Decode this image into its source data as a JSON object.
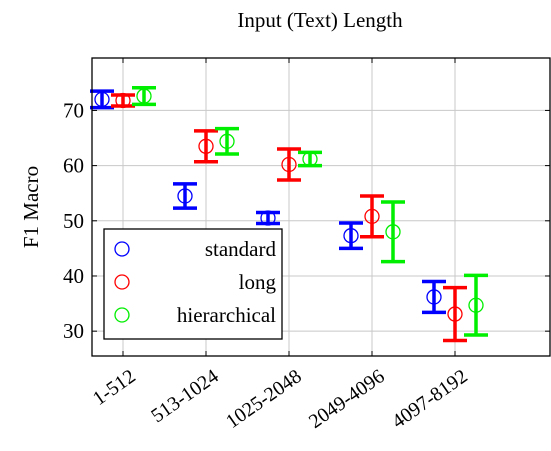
{
  "chart_data": {
    "type": "scatter",
    "title": "Input (Text) Length",
    "xlabel": "",
    "ylabel": "F1 Macro",
    "categories": [
      "1-512",
      "513-1024",
      "1025-2048",
      "2049-4096",
      "4097-8192"
    ],
    "ylim": [
      25.5,
      79.5
    ],
    "yticks": [
      30,
      40,
      50,
      60,
      70
    ],
    "grid": true,
    "legend_position": "bottom-left",
    "series": [
      {
        "name": "standard",
        "color": "#0000ff",
        "values": [
          72.0,
          54.5,
          50.5,
          47.3,
          36.2
        ],
        "errors": [
          1.5,
          2.2,
          1.0,
          2.3,
          2.8
        ]
      },
      {
        "name": "long",
        "color": "#ff0000",
        "values": [
          71.8,
          63.5,
          60.2,
          50.8,
          33.1
        ],
        "errors": [
          1.0,
          2.8,
          2.8,
          3.7,
          4.8
        ]
      },
      {
        "name": "hierarchical",
        "color": "#00ee00",
        "values": [
          72.6,
          64.4,
          61.2,
          48.0,
          34.7
        ],
        "errors": [
          1.5,
          2.3,
          1.2,
          5.4,
          5.4
        ]
      }
    ]
  }
}
